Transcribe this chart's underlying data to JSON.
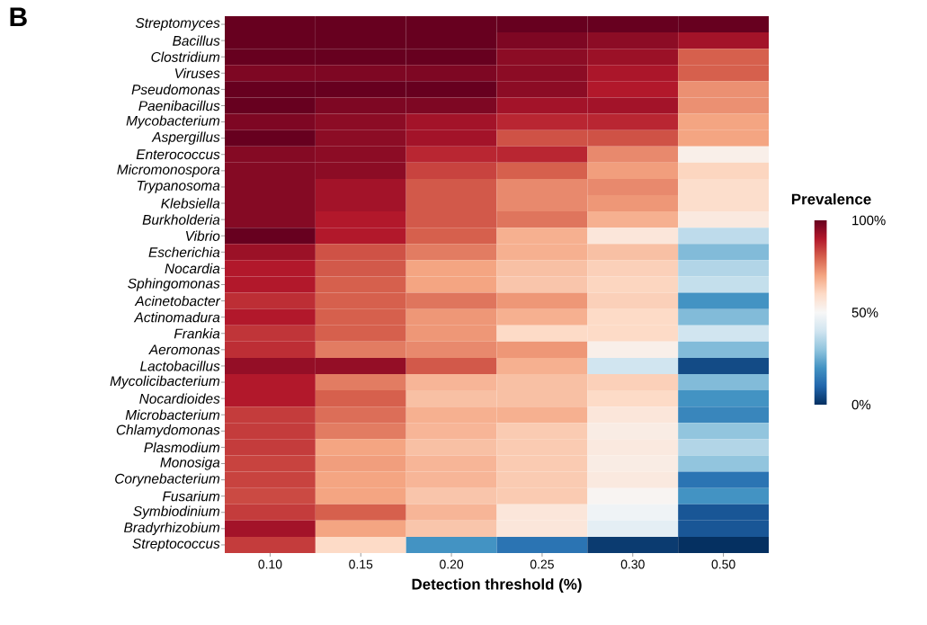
{
  "chart_data": {
    "type": "heatmap",
    "xlabel": "Detection threshold (%)",
    "clabel": "Prevalence",
    "annotations": [
      "B"
    ],
    "categories": [
      "0.10",
      "0.15",
      "0.20",
      "0.25",
      "0.30",
      "0.50"
    ],
    "y_categories": [
      "Streptomyces",
      "Bacillus",
      "Clostridium",
      "Viruses",
      "Pseudomonas",
      "Paenibacillus",
      "Mycobacterium",
      "Aspergillus",
      "Enterococcus",
      "Micromonospora",
      "Trypanosoma",
      "Klebsiella",
      "Burkholderia",
      "Vibrio",
      "Escherichia",
      "Nocardia",
      "Sphingomonas",
      "Acinetobacter",
      "Actinomadura",
      "Frankia",
      "Aeromonas",
      "Lactobacillus",
      "Mycolicibacterium",
      "Nocardioides",
      "Microbacterium",
      "Chlamydomonas",
      "Plasmodium",
      "Monosiga",
      "Corynebacterium",
      "Fusarium",
      "Symbiodinium",
      "Bradyrhizobium",
      "Streptococcus"
    ],
    "cells": [
      [
        100,
        100,
        100,
        100,
        100,
        100
      ],
      [
        100,
        100,
        100,
        97,
        95,
        92
      ],
      [
        100,
        100,
        100,
        95,
        93,
        80
      ],
      [
        97,
        97,
        97,
        95,
        91,
        80
      ],
      [
        100,
        100,
        100,
        95,
        90,
        73
      ],
      [
        100,
        97,
        97,
        92,
        92,
        73
      ],
      [
        97,
        95,
        92,
        88,
        88,
        70
      ],
      [
        100,
        95,
        92,
        82,
        82,
        70
      ],
      [
        96,
        95,
        88,
        88,
        74,
        53
      ],
      [
        96,
        95,
        84,
        80,
        71,
        61
      ],
      [
        96,
        92,
        81,
        74,
        74,
        59
      ],
      [
        96,
        92,
        81,
        74,
        72,
        59
      ],
      [
        96,
        90,
        81,
        77,
        68,
        55
      ],
      [
        100,
        90,
        80,
        68,
        56,
        37
      ],
      [
        93,
        82,
        76,
        68,
        65,
        28
      ],
      [
        90,
        81,
        70,
        65,
        62,
        35
      ],
      [
        90,
        80,
        70,
        64,
        61,
        38
      ],
      [
        87,
        80,
        77,
        72,
        62,
        20
      ],
      [
        90,
        80,
        72,
        68,
        60,
        28
      ],
      [
        86,
        80,
        72,
        60,
        60,
        40
      ],
      [
        87,
        76,
        74,
        72,
        53,
        28
      ],
      [
        94,
        94,
        81,
        68,
        40,
        5
      ],
      [
        90,
        76,
        67,
        65,
        62,
        28
      ],
      [
        90,
        80,
        65,
        65,
        60,
        20
      ],
      [
        85,
        78,
        68,
        68,
        56,
        17
      ],
      [
        85,
        76,
        67,
        63,
        54,
        30
      ],
      [
        85,
        70,
        65,
        63,
        55,
        35
      ],
      [
        84,
        71,
        67,
        63,
        54,
        30
      ],
      [
        84,
        70,
        67,
        63,
        55,
        13
      ],
      [
        83,
        70,
        64,
        63,
        51,
        20
      ],
      [
        85,
        80,
        67,
        56,
        48,
        7
      ],
      [
        92,
        70,
        64,
        56,
        45,
        7
      ],
      [
        85,
        60,
        20,
        13,
        2,
        0
      ]
    ],
    "clim": [
      0,
      100
    ],
    "cticks": [
      {
        "value": 0,
        "label": "0%"
      },
      {
        "value": 50,
        "label": "50%"
      },
      {
        "value": 100,
        "label": "100%"
      }
    ]
  }
}
